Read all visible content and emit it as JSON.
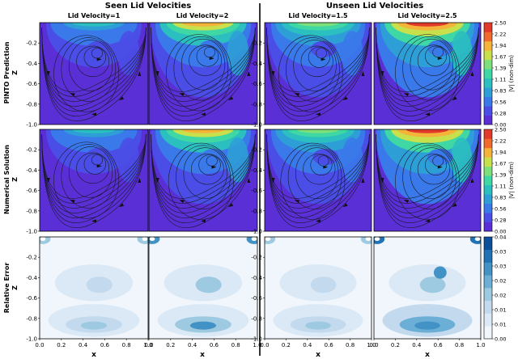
{
  "figure": {
    "group_headers": [
      "Seen Lid Velocities",
      "Unseen Lid Velocities"
    ],
    "column_titles": [
      "Lid Velocity=1",
      "Lid Velocity=2",
      "Lid Velocity=1.5",
      "Lid Velocity=2.5"
    ],
    "row_labels": [
      {
        "line1": "PINTO Prediction",
        "line2": "Z"
      },
      {
        "line1": "Numerical Solution",
        "line2": "Z"
      },
      {
        "line1": "Relative Error",
        "line2": "Z"
      }
    ],
    "x_axis_label": "x"
  },
  "chart_data": [
    {
      "type": "contour",
      "row": "PINTO Prediction",
      "panels": [
        {
          "title": "Lid Velocity=1",
          "lid_velocity": 1,
          "vortex_center": [
            0.55,
            -0.26
          ],
          "max_speed": 1.0
        },
        {
          "title": "Lid Velocity=2",
          "lid_velocity": 2,
          "vortex_center": [
            0.58,
            -0.25
          ],
          "max_speed": 2.0
        },
        {
          "title": "Lid Velocity=1.5",
          "lid_velocity": 1.5,
          "vortex_center": [
            0.55,
            -0.26
          ],
          "max_speed": 1.5
        },
        {
          "title": "Lid Velocity=2.5",
          "lid_velocity": 2.5,
          "vortex_center": [
            0.62,
            -0.25
          ],
          "max_speed": 2.5
        }
      ],
      "xlim": [
        0.0,
        1.0
      ],
      "ylim": [
        -1.0,
        0.0
      ],
      "xticks": [
        "0.0",
        "0.2",
        "0.4",
        "0.6",
        "0.8",
        "1.0"
      ],
      "yticks": [
        "-0.2",
        "-0.4",
        "-0.6",
        "-0.8",
        "-1.0"
      ],
      "ylabel": "Z",
      "streamlines": true,
      "colorbar": {
        "label": "|V| (non-dim)",
        "ticks": [
          "0.00",
          "0.28",
          "0.56",
          "0.83",
          "1.11",
          "1.39",
          "1.67",
          "1.94",
          "2.22",
          "2.50"
        ],
        "range": [
          0.0,
          2.5
        ],
        "levels": [
          "#5b2fd6",
          "#4a4ee6",
          "#3a79ea",
          "#2e9fd6",
          "#2bbfbf",
          "#3fd7a4",
          "#7ee07a",
          "#c8e04c",
          "#f4b43a",
          "#f06a2d",
          "#e23a2a"
        ]
      }
    },
    {
      "type": "contour",
      "row": "Numerical Solution",
      "panels": [
        {
          "title": "Lid Velocity=1",
          "lid_velocity": 1,
          "vortex_center": [
            0.55,
            -0.26
          ],
          "max_speed": 1.0
        },
        {
          "title": "Lid Velocity=2",
          "lid_velocity": 2,
          "vortex_center": [
            0.6,
            -0.27
          ],
          "max_speed": 2.0
        },
        {
          "title": "Lid Velocity=1.5",
          "lid_velocity": 1.5,
          "vortex_center": [
            0.57,
            -0.27
          ],
          "max_speed": 1.5
        },
        {
          "title": "Lid Velocity=2.5",
          "lid_velocity": 2.5,
          "vortex_center": [
            0.62,
            -0.27
          ],
          "max_speed": 2.5
        }
      ],
      "xlim": [
        0.0,
        1.0
      ],
      "ylim": [
        -1.0,
        0.0
      ],
      "xticks": [
        "0.0",
        "0.2",
        "0.4",
        "0.6",
        "0.8",
        "1.0"
      ],
      "yticks": [
        "-0.2",
        "-0.4",
        "-0.6",
        "-0.8",
        "-1.0"
      ],
      "ylabel": "Z",
      "streamlines": true,
      "colorbar": {
        "label": "|V| (non-dim)",
        "ticks": [
          "0.00",
          "0.28",
          "0.56",
          "0.83",
          "1.11",
          "1.39",
          "1.67",
          "1.94",
          "2.22",
          "2.50"
        ],
        "range": [
          0.0,
          2.5
        ]
      }
    },
    {
      "type": "contour",
      "row": "Relative Error",
      "panels": [
        {
          "title": "Lid Velocity=1",
          "max_error": 0.02
        },
        {
          "title": "Lid Velocity=2",
          "max_error": 0.03
        },
        {
          "title": "Lid Velocity=1.5",
          "max_error": 0.02
        },
        {
          "title": "Lid Velocity=2.5",
          "max_error": 0.035
        }
      ],
      "xlim": [
        0.0,
        1.0
      ],
      "ylim": [
        -1.0,
        0.0
      ],
      "xticks": [
        "0.0",
        "0.2",
        "0.4",
        "0.6",
        "0.8",
        "1.0"
      ],
      "yticks": [
        "-0.2",
        "-0.4",
        "-0.6",
        "-0.8",
        "-1.0"
      ],
      "ylabel": "Z",
      "xlabel": "x",
      "colorbar": {
        "label": "",
        "ticks": [
          "0.00",
          "0.01",
          "0.01",
          "0.02",
          "0.02",
          "0.03",
          "0.03",
          "0.04"
        ],
        "range": [
          0.0,
          0.04
        ],
        "levels": [
          "#f0f6fc",
          "#dbe9f6",
          "#c2d9ee",
          "#9ecae1",
          "#6baed6",
          "#4292c6",
          "#2171b5",
          "#0b4f9a"
        ]
      }
    }
  ]
}
